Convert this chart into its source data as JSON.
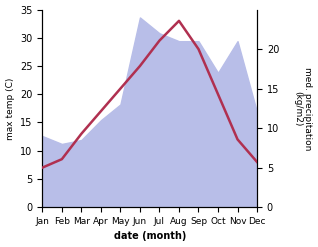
{
  "months": [
    "Jan",
    "Feb",
    "Mar",
    "Apr",
    "May",
    "Jun",
    "Jul",
    "Aug",
    "Sep",
    "Oct",
    "Nov",
    "Dec"
  ],
  "temp": [
    7.0,
    8.5,
    13.0,
    17.0,
    21.0,
    25.0,
    29.5,
    33.0,
    28.0,
    20.0,
    12.0,
    8.0
  ],
  "precip": [
    9.0,
    8.0,
    8.5,
    11.0,
    13.0,
    24.0,
    22.0,
    21.0,
    21.0,
    17.0,
    21.0,
    12.0
  ],
  "temp_color": "#b03050",
  "precip_fill_color": "#b8bee8",
  "ylabel_left": "max temp (C)",
  "ylabel_right": "med. precipitation\n(kg/m2)",
  "xlabel": "date (month)",
  "ylim_left": [
    0,
    35
  ],
  "ylim_right": [
    0,
    25
  ],
  "yticks_left": [
    0,
    5,
    10,
    15,
    20,
    25,
    30,
    35
  ],
  "yticks_right": [
    0,
    5,
    10,
    15,
    20
  ],
  "bg_color": "#ffffff"
}
